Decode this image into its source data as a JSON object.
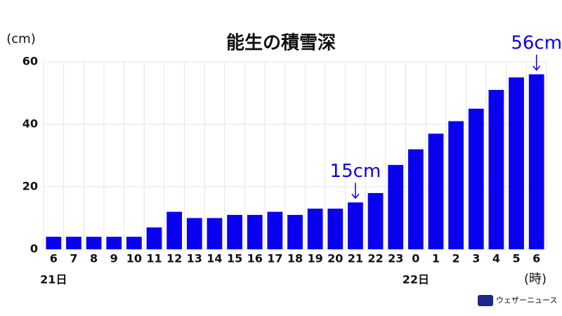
{
  "chart_data": {
    "type": "bar",
    "title": "能生の積雪深",
    "y_label": "(cm)",
    "x_label": "(時)",
    "categories": [
      "6",
      "7",
      "8",
      "9",
      "10",
      "11",
      "12",
      "13",
      "14",
      "15",
      "16",
      "17",
      "18",
      "19",
      "20",
      "21",
      "22",
      "23",
      "0",
      "1",
      "2",
      "3",
      "4",
      "5",
      "6"
    ],
    "values": [
      4,
      4,
      4,
      4,
      4,
      7,
      12,
      10,
      10,
      11,
      11,
      12,
      11,
      13,
      13,
      15,
      18,
      27,
      32,
      37,
      41,
      45,
      51,
      55,
      56
    ],
    "value_labels": [
      null,
      null,
      null,
      null,
      null,
      null,
      null,
      null,
      null,
      null,
      null,
      null,
      null,
      null,
      null,
      "15cm",
      null,
      null,
      null,
      null,
      null,
      null,
      null,
      null,
      "56cm"
    ],
    "day_labels": [
      "21日",
      null,
      null,
      null,
      null,
      null,
      null,
      null,
      null,
      null,
      null,
      null,
      null,
      null,
      null,
      null,
      null,
      null,
      "22日",
      null,
      null,
      null,
      null,
      null,
      null
    ],
    "color": "#0a00f0",
    "ylim": [
      0,
      60
    ],
    "yticks": [
      0,
      20,
      40,
      60
    ],
    "grid": true,
    "source": "ウェザーニュース"
  }
}
